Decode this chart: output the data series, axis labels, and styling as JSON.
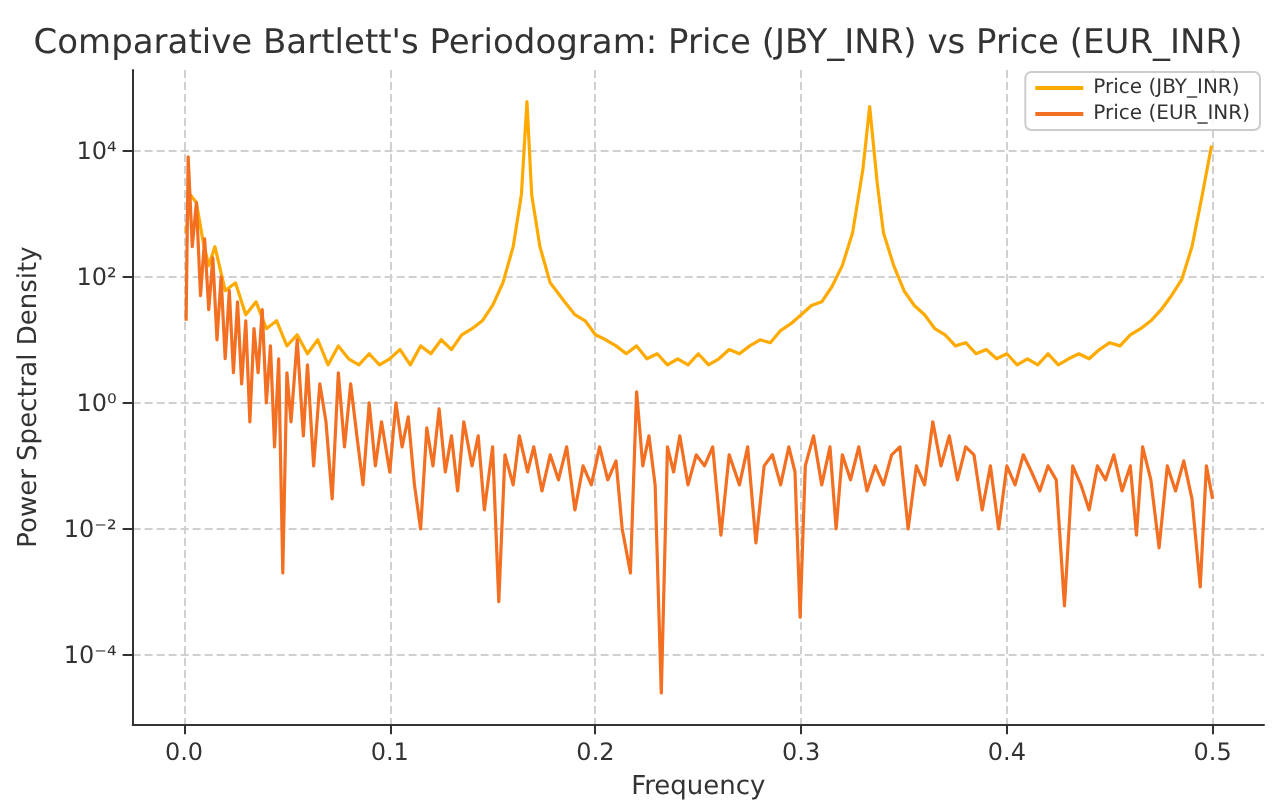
{
  "chart_data": {
    "type": "line",
    "title": "Comparative Bartlett's Periodogram: Price (JBY_INR) vs Price (EUR_INR)",
    "xlabel": "Frequency",
    "ylabel": "Power Spectral Density",
    "log": "y",
    "grid": true,
    "legend": "top right",
    "xlim": [
      -0.025,
      0.525
    ],
    "xticks": [
      {
        "value": 0,
        "label": "0.0"
      },
      0.1,
      0.2,
      0.3,
      0.4,
      0.5
    ],
    "ylim": [
      8e-06,
      190000
    ],
    "yticks": [
      {
        "value": 0.0001,
        "label": "10⁻⁴"
      },
      {
        "value": 0.01,
        "label": "10⁻²"
      },
      {
        "value": 1,
        "label": "10⁰"
      },
      {
        "value": 100,
        "label": "10²"
      },
      {
        "value": 10000,
        "label": "10⁴"
      }
    ],
    "series": [
      {
        "name": "Price (JBY_INR)",
        "color": "#ffaa00",
        "x": [
          0.001,
          0.003,
          0.006,
          0.009,
          0.012,
          0.015,
          0.02,
          0.025,
          0.03,
          0.035,
          0.04,
          0.045,
          0.05,
          0.055,
          0.06,
          0.065,
          0.07,
          0.075,
          0.08,
          0.085,
          0.09,
          0.095,
          0.1,
          0.105,
          0.11,
          0.115,
          0.12,
          0.125,
          0.13,
          0.135,
          0.14,
          0.145,
          0.15,
          0.155,
          0.16,
          0.164,
          0.1667,
          0.169,
          0.173,
          0.178,
          0.185,
          0.19,
          0.195,
          0.2,
          0.205,
          0.21,
          0.215,
          0.22,
          0.225,
          0.23,
          0.235,
          0.24,
          0.245,
          0.25,
          0.255,
          0.26,
          0.265,
          0.27,
          0.275,
          0.28,
          0.285,
          0.29,
          0.295,
          0.3,
          0.305,
          0.31,
          0.315,
          0.32,
          0.325,
          0.33,
          0.3333,
          0.337,
          0.34,
          0.345,
          0.35,
          0.355,
          0.36,
          0.365,
          0.37,
          0.375,
          0.38,
          0.385,
          0.39,
          0.395,
          0.4,
          0.405,
          0.41,
          0.415,
          0.42,
          0.425,
          0.43,
          0.435,
          0.44,
          0.445,
          0.45,
          0.455,
          0.46,
          0.465,
          0.47,
          0.475,
          0.48,
          0.485,
          0.49,
          0.495,
          0.4995
        ],
        "values": [
          500,
          2000,
          1500,
          400,
          150,
          300,
          60,
          80,
          25,
          40,
          15,
          20,
          8,
          12,
          6,
          10,
          4,
          8,
          5,
          4,
          6,
          4,
          5,
          7,
          4,
          8,
          6,
          10,
          7,
          12,
          15,
          20,
          35,
          80,
          300,
          2000,
          60000,
          2000,
          300,
          80,
          40,
          25,
          20,
          12,
          10,
          8,
          6,
          8,
          5,
          6,
          4,
          5,
          4,
          6,
          4,
          5,
          7,
          6,
          8,
          10,
          9,
          14,
          18,
          25,
          35,
          40,
          70,
          150,
          500,
          5000,
          50000,
          3000,
          500,
          150,
          60,
          35,
          25,
          15,
          12,
          8,
          9,
          6,
          7,
          5,
          6,
          4,
          5,
          4,
          6,
          4,
          5,
          6,
          5,
          7,
          9,
          8,
          12,
          15,
          20,
          30,
          50,
          90,
          300,
          2000,
          12000
        ]
      },
      {
        "name": "Price (EUR_INR)",
        "color": "#f36f21",
        "x": [
          0.001,
          0.002,
          0.004,
          0.006,
          0.008,
          0.01,
          0.012,
          0.014,
          0.016,
          0.018,
          0.02,
          0.022,
          0.024,
          0.026,
          0.028,
          0.03,
          0.032,
          0.034,
          0.036,
          0.038,
          0.04,
          0.042,
          0.044,
          0.046,
          0.048,
          0.05,
          0.052,
          0.055,
          0.058,
          0.06,
          0.063,
          0.066,
          0.069,
          0.072,
          0.075,
          0.078,
          0.081,
          0.084,
          0.087,
          0.09,
          0.093,
          0.096,
          0.1,
          0.103,
          0.106,
          0.109,
          0.112,
          0.115,
          0.118,
          0.121,
          0.124,
          0.127,
          0.13,
          0.133,
          0.136,
          0.14,
          0.143,
          0.146,
          0.15,
          0.153,
          0.156,
          0.16,
          0.163,
          0.167,
          0.17,
          0.174,
          0.178,
          0.182,
          0.186,
          0.19,
          0.194,
          0.198,
          0.202,
          0.206,
          0.21,
          0.213,
          0.217,
          0.22,
          0.223,
          0.226,
          0.229,
          0.232,
          0.235,
          0.238,
          0.241,
          0.245,
          0.249,
          0.253,
          0.257,
          0.261,
          0.265,
          0.27,
          0.274,
          0.278,
          0.282,
          0.286,
          0.29,
          0.294,
          0.297,
          0.2995,
          0.302,
          0.306,
          0.31,
          0.314,
          0.317,
          0.32,
          0.324,
          0.328,
          0.332,
          0.336,
          0.34,
          0.344,
          0.348,
          0.352,
          0.356,
          0.36,
          0.364,
          0.368,
          0.372,
          0.376,
          0.38,
          0.384,
          0.388,
          0.392,
          0.396,
          0.4,
          0.404,
          0.408,
          0.412,
          0.416,
          0.42,
          0.424,
          0.428,
          0.432,
          0.436,
          0.44,
          0.444,
          0.448,
          0.452,
          0.456,
          0.46,
          0.463,
          0.466,
          0.47,
          0.474,
          0.478,
          0.482,
          0.486,
          0.49,
          0.494,
          0.497,
          0.5
        ],
        "values": [
          20,
          8000,
          300,
          1500,
          50,
          400,
          30,
          200,
          10,
          100,
          5,
          60,
          3,
          40,
          2,
          20,
          0.5,
          15,
          3,
          30,
          1,
          8,
          0.2,
          5,
          0.002,
          3,
          0.5,
          10,
          0.3,
          4,
          0.1,
          2,
          0.5,
          0.03,
          3,
          0.2,
          2,
          0.3,
          0.05,
          1,
          0.1,
          0.5,
          0.08,
          1,
          0.2,
          0.6,
          0.05,
          0.01,
          0.4,
          0.1,
          0.8,
          0.08,
          0.3,
          0.04,
          0.5,
          0.1,
          0.3,
          0.02,
          0.2,
          0.0007,
          0.15,
          0.05,
          0.3,
          0.08,
          0.2,
          0.04,
          0.15,
          0.06,
          0.2,
          0.02,
          0.1,
          0.05,
          0.2,
          0.06,
          0.12,
          0.01,
          0.002,
          1.5,
          0.1,
          0.3,
          0.05,
          2.5e-05,
          0.2,
          0.08,
          0.3,
          0.05,
          0.15,
          0.1,
          0.2,
          0.008,
          0.15,
          0.05,
          0.2,
          0.006,
          0.1,
          0.15,
          0.05,
          0.2,
          0.08,
          0.0004,
          0.1,
          0.3,
          0.05,
          0.2,
          0.01,
          0.15,
          0.06,
          0.2,
          0.04,
          0.1,
          0.05,
          0.15,
          0.2,
          0.01,
          0.1,
          0.05,
          0.5,
          0.1,
          0.3,
          0.06,
          0.2,
          0.15,
          0.02,
          0.1,
          0.01,
          0.1,
          0.05,
          0.15,
          0.08,
          0.04,
          0.1,
          0.06,
          0.0006,
          0.1,
          0.05,
          0.02,
          0.1,
          0.06,
          0.15,
          0.04,
          0.1,
          0.008,
          0.2,
          0.06,
          0.005,
          0.1,
          0.04,
          0.12,
          0.03,
          0.0012,
          0.1,
          0.03
        ]
      }
    ]
  }
}
